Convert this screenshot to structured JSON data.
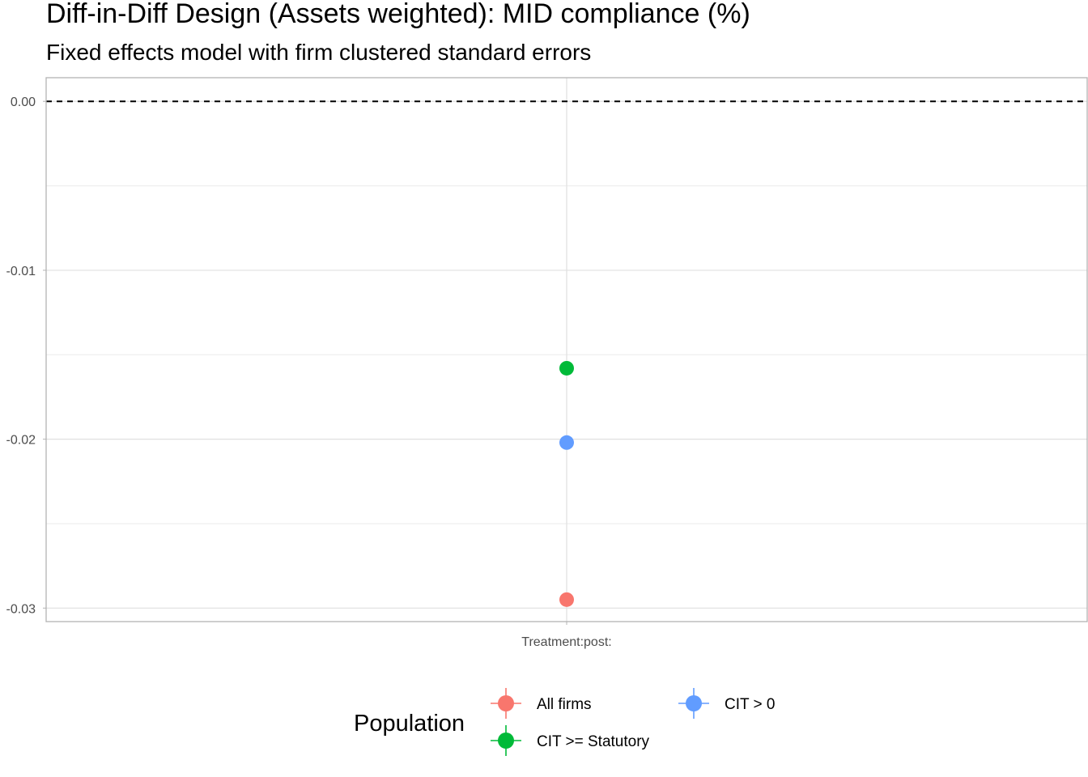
{
  "chart_data": {
    "type": "scatter",
    "title": "Diff-in-Diff Design (Assets weighted): MID compliance (%)",
    "subtitle": "Fixed effects model with firm clustered standard errors",
    "categories": [
      "Treatment:post:"
    ],
    "ylim": [
      -0.0308,
      0.0014
    ],
    "y_ticks": [
      {
        "value": 0.0,
        "label": "0.00"
      },
      {
        "value": -0.01,
        "label": "-0.01"
      },
      {
        "value": -0.02,
        "label": "-0.02"
      },
      {
        "value": -0.03,
        "label": "-0.03"
      }
    ],
    "y_minor_ticks": [
      -0.005,
      -0.015,
      -0.025
    ],
    "reference_line": {
      "value": 0.0,
      "style": "dashed"
    },
    "grid": true,
    "series": [
      {
        "name": "All firms",
        "color": "#F8766D",
        "values": [
          -0.0295
        ]
      },
      {
        "name": "CIT >= Statutory",
        "color": "#00BA38",
        "values": [
          -0.0158
        ]
      },
      {
        "name": "CIT > 0",
        "color": "#619CFF",
        "values": [
          -0.0202
        ]
      }
    ],
    "legend": {
      "title": "Population",
      "placement": "bottom",
      "entries": [
        "All firms",
        "CIT > 0",
        "CIT >= Statutory"
      ]
    }
  }
}
